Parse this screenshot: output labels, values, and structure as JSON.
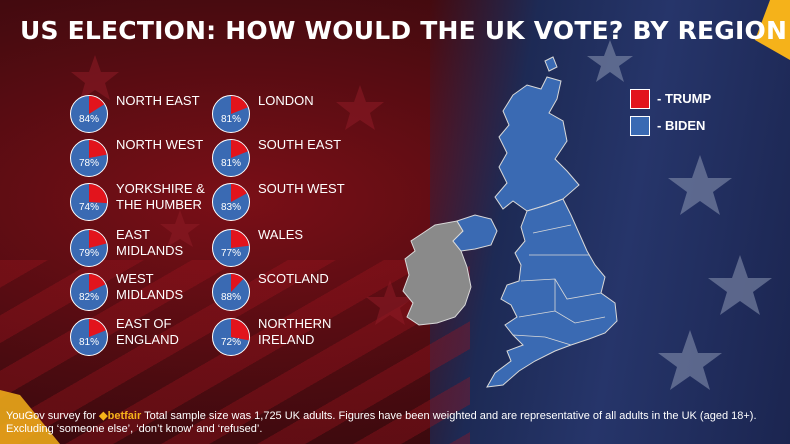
{
  "title": "US ELECTION: HOW WOULD THE UK VOTE? BY REGION",
  "colors": {
    "trump": "#e2141c",
    "biden": "#3a6ab3",
    "brand": "#f5b21a"
  },
  "legend": {
    "trump": "- TRUMP",
    "biden": "- BIDEN"
  },
  "footer": {
    "prefix": "YouGov survey for",
    "brand": "betfair",
    "line1": "Total sample size was 1,725 UK adults. Figures have been weighted and are representative of all adults in the UK (aged 18+).",
    "line2": "Excluding ‘someone else’, ‘don’t know’ and ‘refused’."
  },
  "regions": [
    {
      "name": "NORTH EAST",
      "pct_label": "84%"
    },
    {
      "name": "NORTH WEST",
      "pct_label": "78%"
    },
    {
      "name": "YORKSHIRE & THE HUMBER",
      "pct_label": "74%"
    },
    {
      "name": "EAST MIDLANDS",
      "pct_label": "79%"
    },
    {
      "name": "WEST MIDLANDS",
      "pct_label": "82%"
    },
    {
      "name": "EAST OF ENGLAND",
      "pct_label": "81%"
    },
    {
      "name": "LONDON",
      "pct_label": "81%"
    },
    {
      "name": "SOUTH EAST",
      "pct_label": "81%"
    },
    {
      "name": "SOUTH WEST",
      "pct_label": "83%"
    },
    {
      "name": "WALES",
      "pct_label": "77%"
    },
    {
      "name": "SCOTLAND",
      "pct_label": "88%"
    },
    {
      "name": "NORTHERN IRELAND",
      "pct_label": "72%"
    }
  ],
  "chart_data": {
    "type": "pie",
    "series": [
      {
        "name": "BIDEN"
      },
      {
        "name": "TRUMP"
      }
    ],
    "categories": [
      "NORTH EAST",
      "NORTH WEST",
      "YORKSHIRE & THE HUMBER",
      "EAST MIDLANDS",
      "WEST MIDLANDS",
      "EAST OF ENGLAND",
      "LONDON",
      "SOUTH EAST",
      "SOUTH WEST",
      "WALES",
      "SCOTLAND",
      "NORTHERN IRELAND"
    ],
    "biden_values": [
      84,
      78,
      74,
      79,
      82,
      81,
      81,
      81,
      83,
      77,
      88,
      72
    ],
    "trump_values": [
      16,
      22,
      26,
      21,
      18,
      19,
      19,
      19,
      17,
      23,
      12,
      28
    ]
  }
}
